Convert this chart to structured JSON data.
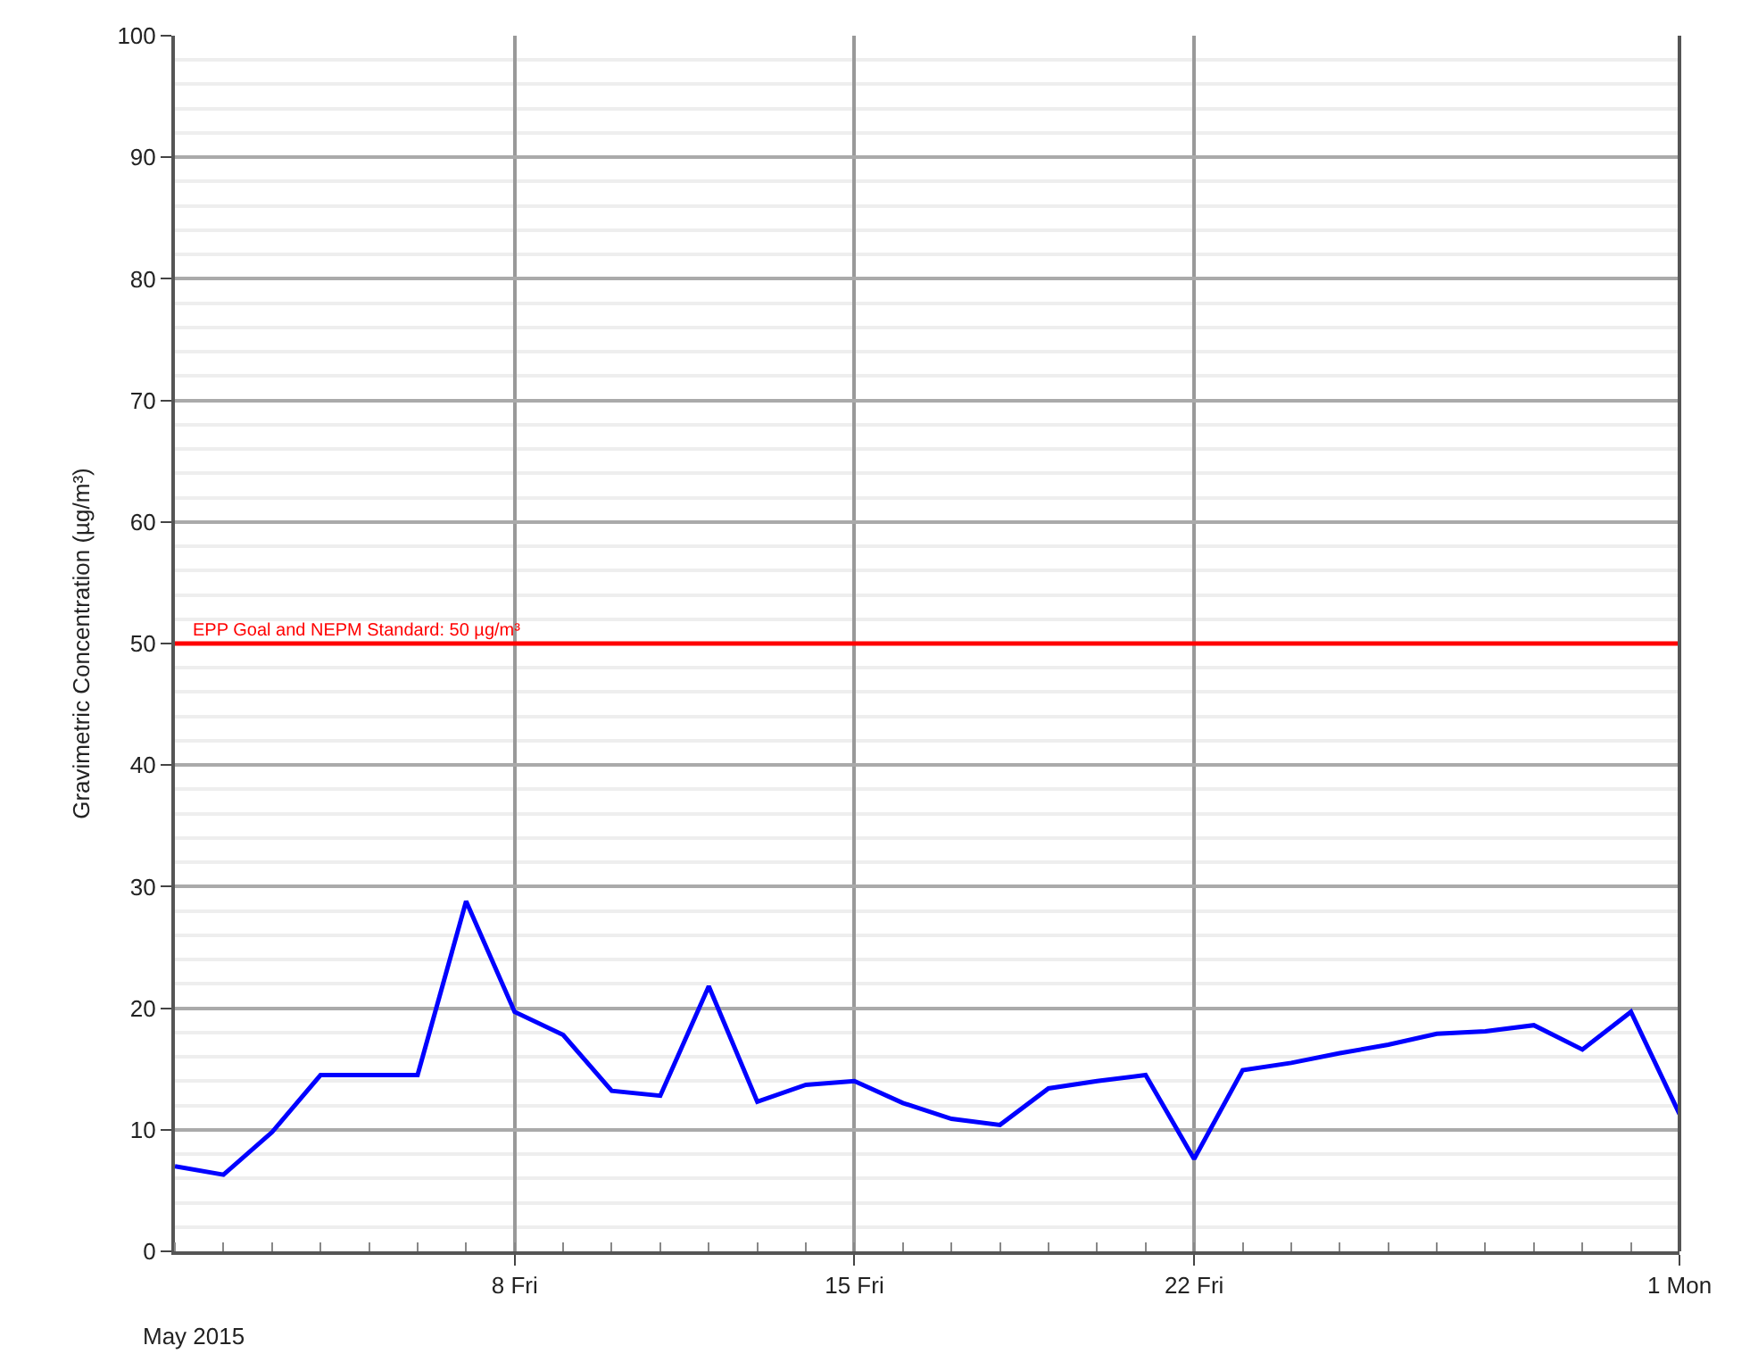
{
  "chart_data": {
    "type": "line",
    "xlabel": "May 2015",
    "ylabel": "Gravimetric Concentration (µg/m³)",
    "x": [
      "2015-05-01",
      "2015-05-02",
      "2015-05-03",
      "2015-05-04",
      "2015-05-05",
      "2015-05-06",
      "2015-05-07",
      "2015-05-08",
      "2015-05-09",
      "2015-05-10",
      "2015-05-11",
      "2015-05-12",
      "2015-05-13",
      "2015-05-14",
      "2015-05-15",
      "2015-05-16",
      "2015-05-17",
      "2015-05-18",
      "2015-05-19",
      "2015-05-20",
      "2015-05-21",
      "2015-05-22",
      "2015-05-23",
      "2015-05-24",
      "2015-05-25",
      "2015-05-26",
      "2015-05-27",
      "2015-05-28",
      "2015-05-29",
      "2015-05-30",
      "2015-05-31",
      "2015-06-01"
    ],
    "series": [
      {
        "color": "#0000ff",
        "values": [
          7,
          6.3,
          9.8,
          14.5,
          14.5,
          14.5,
          28.8,
          19.7,
          17.8,
          13.2,
          12.8,
          21.8,
          12.3,
          13.7,
          14,
          12.2,
          10.9,
          10.4,
          13.4,
          14,
          14.5,
          7.6,
          14.9,
          15.5,
          16.3,
          17,
          17.9,
          18.1,
          18.6,
          16.6,
          19.7,
          11.3
        ]
      }
    ],
    "xlim": [
      "2015-05-01",
      "2015-06-01"
    ],
    "xticks": [
      {
        "value": "2015-05-08",
        "label": "8 Fri"
      },
      {
        "value": "2015-05-15",
        "label": "15 Fri"
      },
      {
        "value": "2015-05-22",
        "label": "22 Fri"
      },
      {
        "value": "2015-06-01",
        "label": "1 Mon"
      }
    ],
    "ylim": [
      0,
      100
    ],
    "yticks": [
      0,
      10,
      20,
      30,
      40,
      50,
      60,
      70,
      80,
      90,
      100
    ],
    "ref_lines": [
      {
        "axis": "y",
        "value": 50,
        "label": "EPP Goal and NEPM Standard: 50 µg/m³",
        "color": "#ff0000"
      }
    ],
    "grid": true,
    "legend": false,
    "marker": "none",
    "line_style": "solid"
  }
}
